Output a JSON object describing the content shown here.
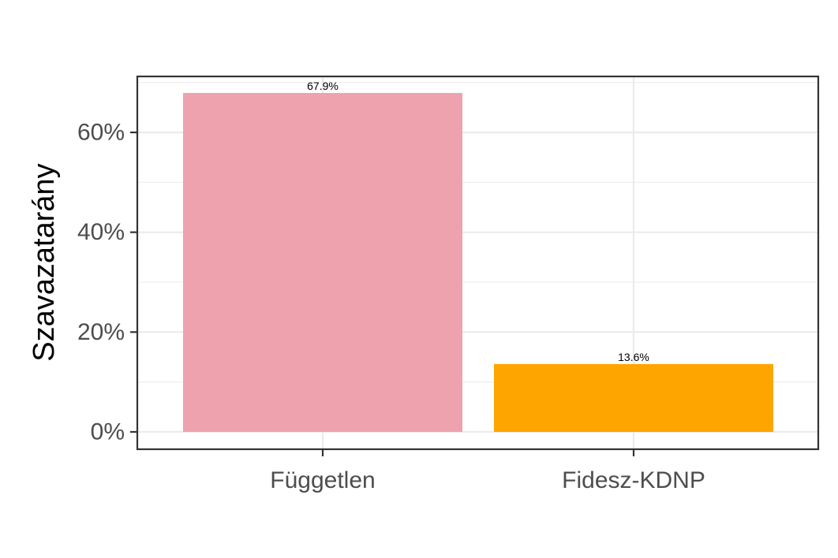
{
  "chart_data": {
    "type": "bar",
    "categories": [
      "Független",
      "Fidesz-KDNP"
    ],
    "values": [
      67.9,
      13.6
    ],
    "data_labels": [
      "67.9%",
      "13.6%"
    ],
    "colors": [
      "#eea2ad",
      "#ffa500"
    ],
    "xlabel": "",
    "ylabel": "Szavazatarány",
    "ylim": [
      0,
      70
    ],
    "y_ticks": [
      0,
      20,
      40,
      60
    ],
    "y_tick_labels": [
      "0%",
      "20%",
      "40%",
      "60%"
    ],
    "grid": true,
    "legend": "none"
  }
}
